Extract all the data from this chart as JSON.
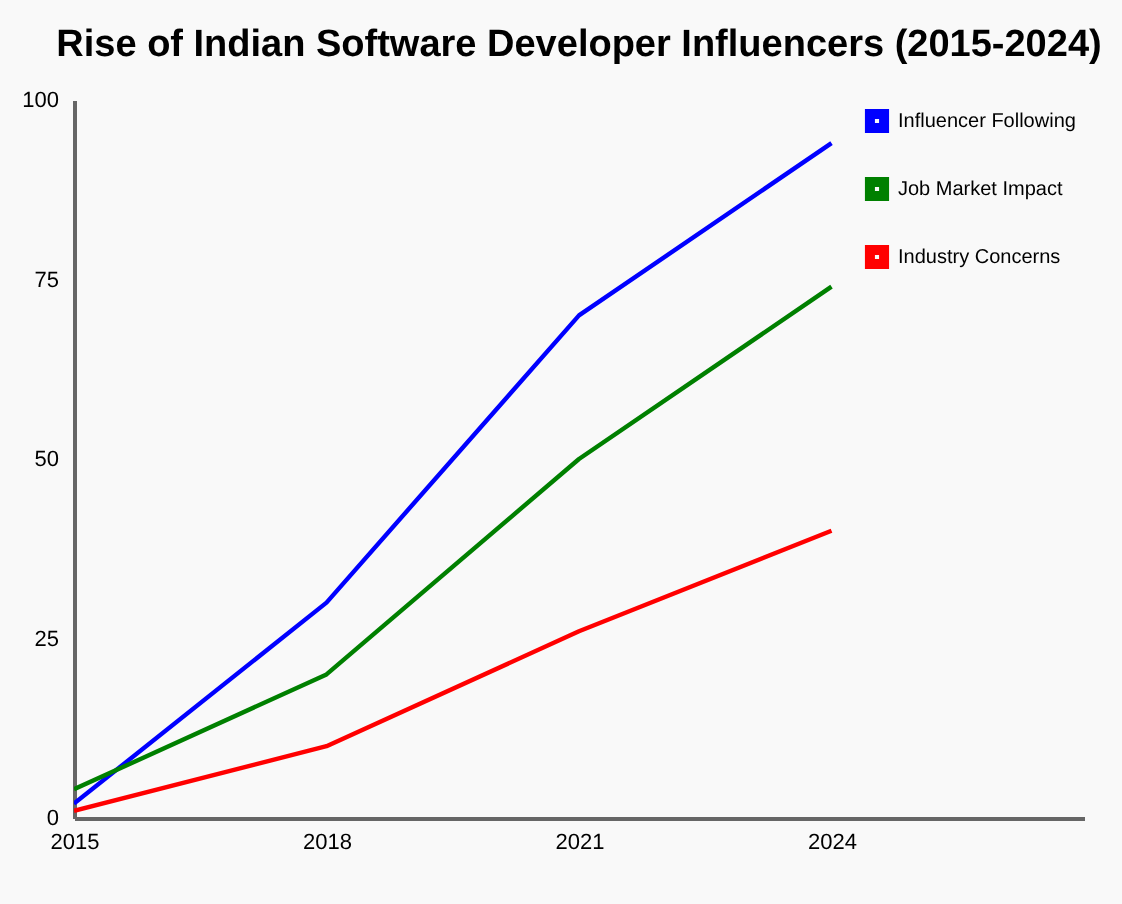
{
  "chart_data": {
    "type": "line",
    "title": "Rise of Indian Software Developer Influencers (2015-2024)",
    "x": [
      2015,
      2018,
      2021,
      2024
    ],
    "series": [
      {
        "name": "Influencer Following",
        "color": "#0000ff",
        "values": [
          2,
          30,
          70,
          94
        ]
      },
      {
        "name": "Job Market Impact",
        "color": "#008000",
        "values": [
          4,
          20,
          50,
          74
        ]
      },
      {
        "name": "Industry Concerns",
        "color": "#ff0000",
        "values": [
          1,
          10,
          26,
          40
        ]
      }
    ],
    "xlim": [
      2015,
      2027
    ],
    "xticks": [
      2015,
      2018,
      2021,
      2024
    ],
    "ylim": [
      0,
      100
    ],
    "yticks": [
      0,
      25,
      50,
      75,
      100
    ],
    "grid": false,
    "legend": "top right",
    "marker": "none",
    "line_style": "solid"
  }
}
